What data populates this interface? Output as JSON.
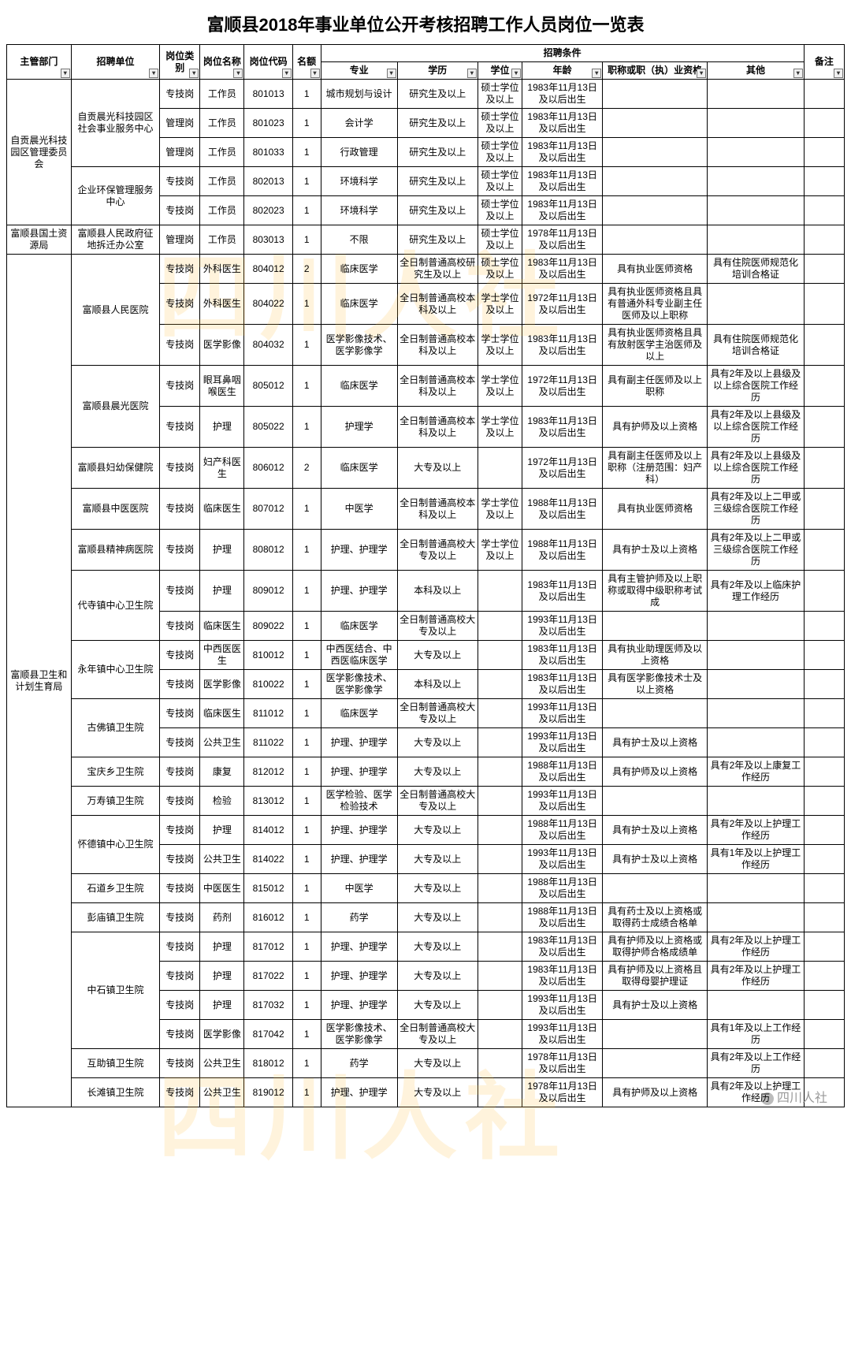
{
  "title": "富顺县2018年事业单位公开考核招聘工作人员岗位一览表",
  "watermark_text": "四川人社",
  "footer_text": "四川人社",
  "headers": {
    "dept": "主管部门",
    "unit": "招聘单位",
    "cat": "岗位类别",
    "name": "岗位名称",
    "code": "岗位代码",
    "qty": "名额",
    "cond_group": "招聘条件",
    "maj": "专业",
    "edu": "学历",
    "deg": "学位",
    "age": "年龄",
    "qual": "职称或职（执）业资格",
    "other": "其他",
    "note": "备注"
  },
  "rows": [
    {
      "dept": "自贡晨光科技园区管理委员会",
      "unit": "自贡晨光科技园区社会事业服务中心",
      "cat": "专技岗",
      "name": "工作员",
      "code": "801013",
      "qty": "1",
      "maj": "城市规划与设计",
      "edu": "研究生及以上",
      "deg": "硕士学位及以上",
      "age": "1983年11月13日及以后出生",
      "qual": "",
      "other": "",
      "note": ""
    },
    {
      "dept": "",
      "unit": "",
      "cat": "管理岗",
      "name": "工作员",
      "code": "801023",
      "qty": "1",
      "maj": "会计学",
      "edu": "研究生及以上",
      "deg": "硕士学位及以上",
      "age": "1983年11月13日及以后出生",
      "qual": "",
      "other": "",
      "note": ""
    },
    {
      "dept": "",
      "unit": "",
      "cat": "管理岗",
      "name": "工作员",
      "code": "801033",
      "qty": "1",
      "maj": "行政管理",
      "edu": "研究生及以上",
      "deg": "硕士学位及以上",
      "age": "1983年11月13日及以后出生",
      "qual": "",
      "other": "",
      "note": ""
    },
    {
      "dept": "",
      "unit": "企业环保管理服务中心",
      "cat": "专技岗",
      "name": "工作员",
      "code": "802013",
      "qty": "1",
      "maj": "环境科学",
      "edu": "研究生及以上",
      "deg": "硕士学位及以上",
      "age": "1983年11月13日及以后出生",
      "qual": "",
      "other": "",
      "note": ""
    },
    {
      "dept": "",
      "unit": "",
      "cat": "专技岗",
      "name": "工作员",
      "code": "802023",
      "qty": "1",
      "maj": "环境科学",
      "edu": "研究生及以上",
      "deg": "硕士学位及以上",
      "age": "1983年11月13日及以后出生",
      "qual": "",
      "other": "",
      "note": ""
    },
    {
      "dept": "富顺县国土资源局",
      "unit": "富顺县人民政府征地拆迁办公室",
      "cat": "管理岗",
      "name": "工作员",
      "code": "803013",
      "qty": "1",
      "maj": "不限",
      "edu": "研究生及以上",
      "deg": "硕士学位及以上",
      "age": "1978年11月13日及以后出生",
      "qual": "",
      "other": "",
      "note": ""
    },
    {
      "dept": "富顺县卫生和计划生育局",
      "unit": "富顺县人民医院",
      "cat": "专技岗",
      "name": "外科医生",
      "code": "804012",
      "qty": "2",
      "maj": "临床医学",
      "edu": "全日制普通高校研究生及以上",
      "deg": "硕士学位及以上",
      "age": "1983年11月13日及以后出生",
      "qual": "具有执业医师资格",
      "other": "具有住院医师规范化培训合格证",
      "note": ""
    },
    {
      "dept": "",
      "unit": "",
      "cat": "专技岗",
      "name": "外科医生",
      "code": "804022",
      "qty": "1",
      "maj": "临床医学",
      "edu": "全日制普通高校本科及以上",
      "deg": "学士学位及以上",
      "age": "1972年11月13日及以后出生",
      "qual": "具有执业医师资格且具有普通外科专业副主任医师及以上职称",
      "other": "",
      "note": ""
    },
    {
      "dept": "",
      "unit": "",
      "cat": "专技岗",
      "name": "医学影像",
      "code": "804032",
      "qty": "1",
      "maj": "医学影像技术、医学影像学",
      "edu": "全日制普通高校本科及以上",
      "deg": "学士学位及以上",
      "age": "1983年11月13日及以后出生",
      "qual": "具有执业医师资格且具有放射医学主治医师及以上",
      "other": "具有住院医师规范化培训合格证",
      "note": ""
    },
    {
      "dept": "",
      "unit": "富顺县晨光医院",
      "cat": "专技岗",
      "name": "眼耳鼻咽喉医生",
      "code": "805012",
      "qty": "1",
      "maj": "临床医学",
      "edu": "全日制普通高校本科及以上",
      "deg": "学士学位及以上",
      "age": "1972年11月13日及以后出生",
      "qual": "具有副主任医师及以上职称",
      "other": "具有2年及以上县级及以上综合医院工作经历",
      "note": ""
    },
    {
      "dept": "",
      "unit": "",
      "cat": "专技岗",
      "name": "护理",
      "code": "805022",
      "qty": "1",
      "maj": "护理学",
      "edu": "全日制普通高校本科及以上",
      "deg": "学士学位及以上",
      "age": "1983年11月13日及以后出生",
      "qual": "具有护师及以上资格",
      "other": "具有2年及以上县级及以上综合医院工作经历",
      "note": ""
    },
    {
      "dept": "",
      "unit": "富顺县妇幼保健院",
      "cat": "专技岗",
      "name": "妇产科医生",
      "code": "806012",
      "qty": "2",
      "maj": "临床医学",
      "edu": "大专及以上",
      "deg": "",
      "age": "1972年11月13日及以后出生",
      "qual": "具有副主任医师及以上职称（注册范围：妇产科）",
      "other": "具有2年及以上县级及以上综合医院工作经历",
      "note": ""
    },
    {
      "dept": "",
      "unit": "富顺县中医医院",
      "cat": "专技岗",
      "name": "临床医生",
      "code": "807012",
      "qty": "1",
      "maj": "中医学",
      "edu": "全日制普通高校本科及以上",
      "deg": "学士学位及以上",
      "age": "1988年11月13日及以后出生",
      "qual": "具有执业医师资格",
      "other": "具有2年及以上二甲或三级综合医院工作经历",
      "note": ""
    },
    {
      "dept": "",
      "unit": "富顺县精神病医院",
      "cat": "专技岗",
      "name": "护理",
      "code": "808012",
      "qty": "1",
      "maj": "护理、护理学",
      "edu": "全日制普通高校大专及以上",
      "deg": "学士学位及以上",
      "age": "1988年11月13日及以后出生",
      "qual": "具有护士及以上资格",
      "other": "具有2年及以上二甲或三级综合医院工作经历",
      "note": ""
    },
    {
      "dept": "",
      "unit": "代寺镇中心卫生院",
      "cat": "专技岗",
      "name": "护理",
      "code": "809012",
      "qty": "1",
      "maj": "护理、护理学",
      "edu": "本科及以上",
      "deg": "",
      "age": "1983年11月13日及以后出生",
      "qual": "具有主管护师及以上职称或取得中级职称考试成",
      "other": "具有2年及以上临床护理工作经历",
      "note": ""
    },
    {
      "dept": "",
      "unit": "",
      "cat": "专技岗",
      "name": "临床医生",
      "code": "809022",
      "qty": "1",
      "maj": "临床医学",
      "edu": "全日制普通高校大专及以上",
      "deg": "",
      "age": "1993年11月13日及以后出生",
      "qual": "",
      "other": "",
      "note": ""
    },
    {
      "dept": "",
      "unit": "永年镇中心卫生院",
      "cat": "专技岗",
      "name": "中西医医生",
      "code": "810012",
      "qty": "1",
      "maj": "中西医结合、中西医临床医学",
      "edu": "大专及以上",
      "deg": "",
      "age": "1983年11月13日及以后出生",
      "qual": "具有执业助理医师及以上资格",
      "other": "",
      "note": ""
    },
    {
      "dept": "",
      "unit": "",
      "cat": "专技岗",
      "name": "医学影像",
      "code": "810022",
      "qty": "1",
      "maj": "医学影像技术、医学影像学",
      "edu": "本科及以上",
      "deg": "",
      "age": "1983年11月13日及以后出生",
      "qual": "具有医学影像技术士及以上资格",
      "other": "",
      "note": ""
    },
    {
      "dept": "",
      "unit": "古佛镇卫生院",
      "cat": "专技岗",
      "name": "临床医生",
      "code": "811012",
      "qty": "1",
      "maj": "临床医学",
      "edu": "全日制普通高校大专及以上",
      "deg": "",
      "age": "1993年11月13日及以后出生",
      "qual": "",
      "other": "",
      "note": ""
    },
    {
      "dept": "",
      "unit": "",
      "cat": "专技岗",
      "name": "公共卫生",
      "code": "811022",
      "qty": "1",
      "maj": "护理、护理学",
      "edu": "大专及以上",
      "deg": "",
      "age": "1993年11月13日及以后出生",
      "qual": "具有护士及以上资格",
      "other": "",
      "note": ""
    },
    {
      "dept": "",
      "unit": "宝庆乡卫生院",
      "cat": "专技岗",
      "name": "康复",
      "code": "812012",
      "qty": "1",
      "maj": "护理、护理学",
      "edu": "大专及以上",
      "deg": "",
      "age": "1988年11月13日及以后出生",
      "qual": "具有护师及以上资格",
      "other": "具有2年及以上康复工作经历",
      "note": ""
    },
    {
      "dept": "",
      "unit": "万寿镇卫生院",
      "cat": "专技岗",
      "name": "检验",
      "code": "813012",
      "qty": "1",
      "maj": "医学检验、医学检验技术",
      "edu": "全日制普通高校大专及以上",
      "deg": "",
      "age": "1993年11月13日及以后出生",
      "qual": "",
      "other": "",
      "note": ""
    },
    {
      "dept": "",
      "unit": "怀德镇中心卫生院",
      "cat": "专技岗",
      "name": "护理",
      "code": "814012",
      "qty": "1",
      "maj": "护理、护理学",
      "edu": "大专及以上",
      "deg": "",
      "age": "1988年11月13日及以后出生",
      "qual": "具有护士及以上资格",
      "other": "具有2年及以上护理工作经历",
      "note": ""
    },
    {
      "dept": "",
      "unit": "",
      "cat": "专技岗",
      "name": "公共卫生",
      "code": "814022",
      "qty": "1",
      "maj": "护理、护理学",
      "edu": "大专及以上",
      "deg": "",
      "age": "1993年11月13日及以后出生",
      "qual": "具有护士及以上资格",
      "other": "具有1年及以上护理工作经历",
      "note": ""
    },
    {
      "dept": "",
      "unit": "石道乡卫生院",
      "cat": "专技岗",
      "name": "中医医生",
      "code": "815012",
      "qty": "1",
      "maj": "中医学",
      "edu": "大专及以上",
      "deg": "",
      "age": "1988年11月13日及以后出生",
      "qual": "",
      "other": "",
      "note": ""
    },
    {
      "dept": "",
      "unit": "彭庙镇卫生院",
      "cat": "专技岗",
      "name": "药剂",
      "code": "816012",
      "qty": "1",
      "maj": "药学",
      "edu": "大专及以上",
      "deg": "",
      "age": "1988年11月13日及以后出生",
      "qual": "具有药士及以上资格或取得药士成绩合格单",
      "other": "",
      "note": ""
    },
    {
      "dept": "",
      "unit": "中石镇卫生院",
      "cat": "专技岗",
      "name": "护理",
      "code": "817012",
      "qty": "1",
      "maj": "护理、护理学",
      "edu": "大专及以上",
      "deg": "",
      "age": "1983年11月13日及以后出生",
      "qual": "具有护师及以上资格或取得护师合格成绩单",
      "other": "具有2年及以上护理工作经历",
      "note": ""
    },
    {
      "dept": "",
      "unit": "",
      "cat": "专技岗",
      "name": "护理",
      "code": "817022",
      "qty": "1",
      "maj": "护理、护理学",
      "edu": "大专及以上",
      "deg": "",
      "age": "1983年11月13日及以后出生",
      "qual": "具有护师及以上资格且取得母婴护理证",
      "other": "具有2年及以上护理工作经历",
      "note": ""
    },
    {
      "dept": "",
      "unit": "",
      "cat": "专技岗",
      "name": "护理",
      "code": "817032",
      "qty": "1",
      "maj": "护理、护理学",
      "edu": "大专及以上",
      "deg": "",
      "age": "1993年11月13日及以后出生",
      "qual": "具有护士及以上资格",
      "other": "",
      "note": ""
    },
    {
      "dept": "",
      "unit": "",
      "cat": "专技岗",
      "name": "医学影像",
      "code": "817042",
      "qty": "1",
      "maj": "医学影像技术、医学影像学",
      "edu": "全日制普通高校大专及以上",
      "deg": "",
      "age": "1993年11月13日及以后出生",
      "qual": "",
      "other": "具有1年及以上工作经历",
      "note": ""
    },
    {
      "dept": "",
      "unit": "互助镇卫生院",
      "cat": "专技岗",
      "name": "公共卫生",
      "code": "818012",
      "qty": "1",
      "maj": "药学",
      "edu": "大专及以上",
      "deg": "",
      "age": "1978年11月13日及以后出生",
      "qual": "",
      "other": "具有2年及以上工作经历",
      "note": ""
    },
    {
      "dept": "",
      "unit": "长滩镇卫生院",
      "cat": "专技岗",
      "name": "公共卫生",
      "code": "819012",
      "qty": "1",
      "maj": "护理、护理学",
      "edu": "大专及以上",
      "deg": "",
      "age": "1978年11月13日及以后出生",
      "qual": "具有护师及以上资格",
      "other": "具有2年及以上护理工作经历",
      "note": ""
    }
  ],
  "dept_spans": [
    5,
    1,
    26
  ],
  "unit_spans": [
    3,
    2,
    1,
    3,
    2,
    1,
    1,
    1,
    2,
    2,
    2,
    1,
    1,
    2,
    1,
    1,
    4,
    1,
    1
  ]
}
